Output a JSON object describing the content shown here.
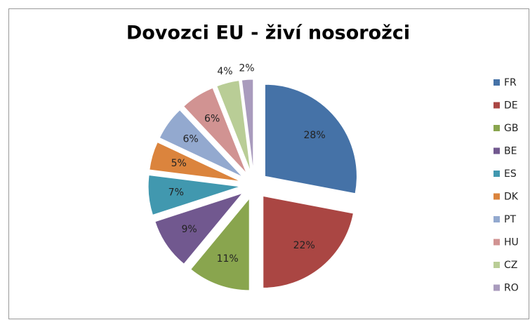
{
  "chart_data": {
    "type": "pie",
    "title": "Dovozci EU - živí nosorožci",
    "categories": [
      "FR",
      "DE",
      "GB",
      "BE",
      "ES",
      "DK",
      "PT",
      "HU",
      "CZ",
      "RO"
    ],
    "values": [
      28,
      22,
      11,
      9,
      7,
      5,
      6,
      6,
      4,
      2
    ],
    "value_labels": [
      "28%",
      "22%",
      "11%",
      "9%",
      "7%",
      "5%",
      "6%",
      "6%",
      "4%",
      "2%"
    ],
    "colors": [
      "#4572a7",
      "#aa4643",
      "#89a54e",
      "#71588f",
      "#4198af",
      "#db843d",
      "#93a9cf",
      "#d19392",
      "#b9cd96",
      "#a99bbd"
    ],
    "legend": "right"
  }
}
